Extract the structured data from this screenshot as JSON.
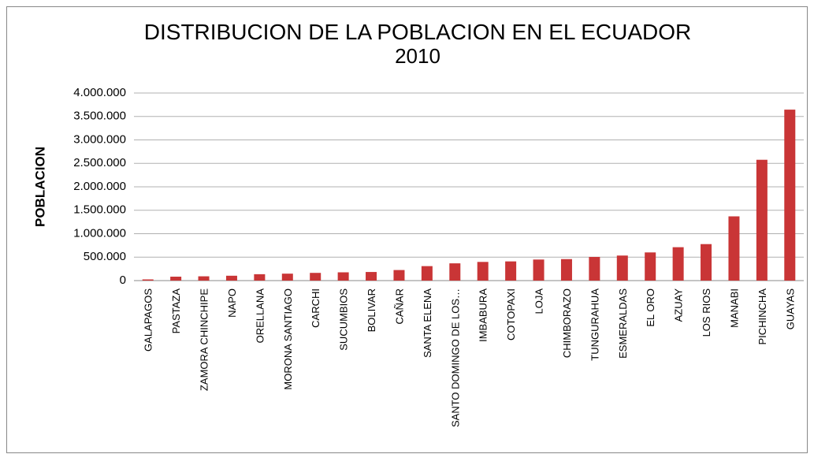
{
  "chart_data": {
    "type": "bar",
    "title": "DISTRIBUCION DE LA POBLACION EN EL ECUADOR",
    "subtitle": "2010",
    "y_label": "POBLACION",
    "categories": [
      "GALAPAGOS",
      "PASTAZA",
      "ZAMORA CHINCHIPE",
      "NAPO",
      "ORELLANA",
      "MORONA SANTIAGO",
      "CARCHI",
      "SUCUMBIOS",
      "BOLIVAR",
      "CAÑAR",
      "SANTA ELENA",
      "SANTO DOMINGO DE LOS…",
      "IMBABURA",
      "COTOPAXI",
      "LOJA",
      "CHIMBORAZO",
      "TUNGURAHUA",
      "ESMERALDAS",
      "EL ORO",
      "AZUAY",
      "LOS RIOS",
      "MANABI",
      "PICHINCHA",
      "GUAYAS"
    ],
    "values": [
      25124,
      83933,
      91376,
      103697,
      136396,
      147940,
      164524,
      176472,
      183641,
      225184,
      308693,
      368013,
      398244,
      409205,
      448966,
      458581,
      504583,
      534092,
      600659,
      712127,
      778115,
      1369780,
      2576287,
      3645483
    ],
    "color": "#c93536",
    "ylim": [
      0,
      4000000
    ],
    "yticks": [
      0,
      {
        "value": 500000,
        "label": "500.000"
      },
      {
        "value": 1000000,
        "label": "1.000.000"
      },
      {
        "value": 1500000,
        "label": "1.500.000"
      },
      {
        "value": 2000000,
        "label": "2.000.000"
      },
      {
        "value": 2500000,
        "label": "2.500.000"
      },
      {
        "value": 3000000,
        "label": "3.000.000"
      },
      {
        "value": 3500000,
        "label": "3.500.000"
      },
      {
        "value": 4000000,
        "label": "4.000.000"
      }
    ],
    "grid": true
  }
}
